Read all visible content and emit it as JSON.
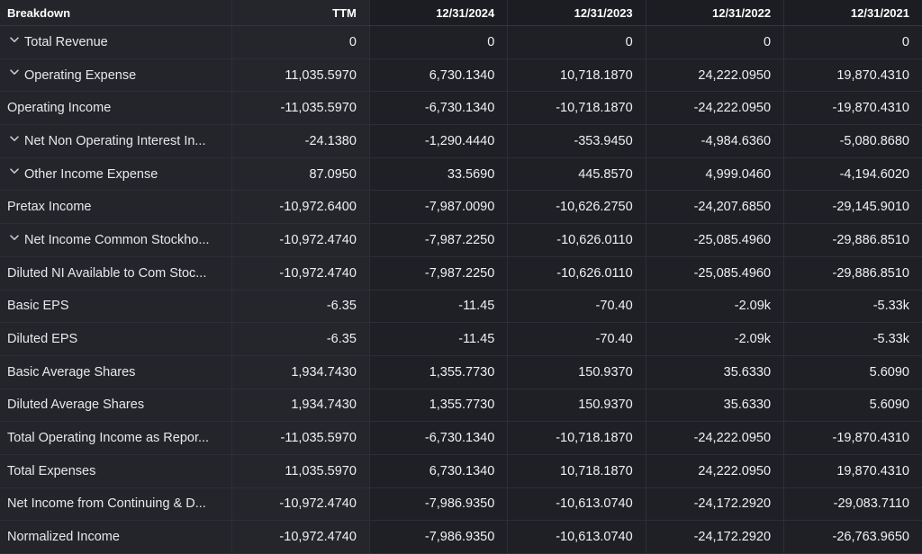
{
  "header": [
    "Breakdown",
    "TTM",
    "12/31/2024",
    "12/31/2023",
    "12/31/2022",
    "12/31/2021"
  ],
  "icons": {
    "expand": "chevron-down-icon"
  },
  "rows": [
    {
      "label": "Total Revenue",
      "expandable": true,
      "values": [
        "0",
        "0",
        "0",
        "0",
        "0"
      ]
    },
    {
      "label": "Operating Expense",
      "expandable": true,
      "values": [
        "11,035.5970",
        "6,730.1340",
        "10,718.1870",
        "24,222.0950",
        "19,870.4310"
      ]
    },
    {
      "label": "Operating Income",
      "expandable": false,
      "values": [
        "-11,035.5970",
        "-6,730.1340",
        "-10,718.1870",
        "-24,222.0950",
        "-19,870.4310"
      ]
    },
    {
      "label": "Net Non Operating Interest In...",
      "expandable": true,
      "values": [
        "-24.1380",
        "-1,290.4440",
        "-353.9450",
        "-4,984.6360",
        "-5,080.8680"
      ]
    },
    {
      "label": "Other Income Expense",
      "expandable": true,
      "values": [
        "87.0950",
        "33.5690",
        "445.8570",
        "4,999.0460",
        "-4,194.6020"
      ]
    },
    {
      "label": "Pretax Income",
      "expandable": false,
      "values": [
        "-10,972.6400",
        "-7,987.0090",
        "-10,626.2750",
        "-24,207.6850",
        "-29,145.9010"
      ]
    },
    {
      "label": "Net Income Common Stockho...",
      "expandable": true,
      "values": [
        "-10,972.4740",
        "-7,987.2250",
        "-10,626.0110",
        "-25,085.4960",
        "-29,886.8510"
      ]
    },
    {
      "label": "Diluted NI Available to Com Stoc...",
      "expandable": false,
      "values": [
        "-10,972.4740",
        "-7,987.2250",
        "-10,626.0110",
        "-25,085.4960",
        "-29,886.8510"
      ]
    },
    {
      "label": "Basic EPS",
      "expandable": false,
      "values": [
        "-6.35",
        "-11.45",
        "-70.40",
        "-2.09k",
        "-5.33k"
      ]
    },
    {
      "label": "Diluted EPS",
      "expandable": false,
      "values": [
        "-6.35",
        "-11.45",
        "-70.40",
        "-2.09k",
        "-5.33k"
      ]
    },
    {
      "label": "Basic Average Shares",
      "expandable": false,
      "values": [
        "1,934.7430",
        "1,355.7730",
        "150.9370",
        "35.6330",
        "5.6090"
      ]
    },
    {
      "label": "Diluted Average Shares",
      "expandable": false,
      "values": [
        "1,934.7430",
        "1,355.7730",
        "150.9370",
        "35.6330",
        "5.6090"
      ]
    },
    {
      "label": "Total Operating Income as Repor...",
      "expandable": false,
      "values": [
        "-11,035.5970",
        "-6,730.1340",
        "-10,718.1870",
        "-24,222.0950",
        "-19,870.4310"
      ]
    },
    {
      "label": "Total Expenses",
      "expandable": false,
      "values": [
        "11,035.5970",
        "6,730.1340",
        "10,718.1870",
        "24,222.0950",
        "19,870.4310"
      ]
    },
    {
      "label": "Net Income from Continuing & D...",
      "expandable": false,
      "values": [
        "-10,972.4740",
        "-7,986.9350",
        "-10,613.0740",
        "-24,172.2920",
        "-29,083.7110"
      ]
    },
    {
      "label": "Normalized Income",
      "expandable": false,
      "values": [
        "-10,972.4740",
        "-7,986.9350",
        "-10,613.0740",
        "-24,172.2920",
        "-26,763.9650"
      ]
    }
  ]
}
